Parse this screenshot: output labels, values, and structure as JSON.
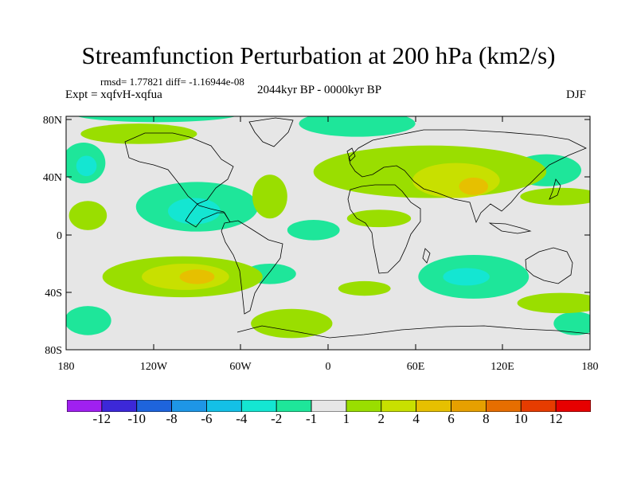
{
  "title": "Streamfunction Perturbation at 200 hPa (km2/s)",
  "stats": "rmsd= 1.77821 diff= -1.16944e-08",
  "experiment": "Expt = xqfvH-xqfua",
  "period": "2044kyr BP - 0000kyr BP",
  "season": "DJF",
  "y_ticks": [
    "80N",
    "40N",
    "0",
    "40S",
    "80S"
  ],
  "x_ticks": [
    "180",
    "120W",
    "60W",
    "0",
    "60E",
    "120E",
    "180"
  ],
  "colorbar": {
    "labels": [
      "-12",
      "-10",
      "-8",
      "-6",
      "-4",
      "-2",
      "-1",
      "1",
      "2",
      "4",
      "6",
      "8",
      "10",
      "12"
    ],
    "colors": [
      "#a020f0",
      "#3c28d8",
      "#1e64dc",
      "#1e96e6",
      "#14c0e6",
      "#14e6d2",
      "#1ee69a",
      "#e6e6e6",
      "#9ade00",
      "#c8e000",
      "#e6c000",
      "#e6a000",
      "#e66e00",
      "#e63c00",
      "#e60000"
    ]
  },
  "field_regions": [
    {
      "name": "arctic-negative",
      "level": -2,
      "lon": -118,
      "lat": 82,
      "rx": 58,
      "ry": 6
    },
    {
      "name": "n-atlantic-negative",
      "level": -2,
      "lon": 20,
      "lat": 75,
      "rx": 40,
      "ry": 9
    },
    {
      "name": "n-pacific-negative",
      "level": -2,
      "lon": -168,
      "lat": 48,
      "rx": 15,
      "ry": 14
    },
    {
      "name": "n-pacific-core",
      "level": -4,
      "lon": -166,
      "lat": 46,
      "rx": 7,
      "ry": 7
    },
    {
      "name": "trop-pacific-negative",
      "level": -2,
      "lon": -90,
      "lat": 18,
      "rx": 42,
      "ry": 17
    },
    {
      "name": "trop-pacific-core",
      "level": -4,
      "lon": -92,
      "lat": 15,
      "rx": 18,
      "ry": 9
    },
    {
      "name": "atlantic-negative",
      "level": -2,
      "lon": -10,
      "lat": 2,
      "rx": 18,
      "ry": 7
    },
    {
      "name": "s-atlantic-negative",
      "level": -2,
      "lon": -40,
      "lat": -28,
      "rx": 18,
      "ry": 7
    },
    {
      "name": "indian-negative",
      "level": -2,
      "lon": 100,
      "lat": -30,
      "rx": 38,
      "ry": 15
    },
    {
      "name": "indian-core",
      "level": -4,
      "lon": 95,
      "lat": -30,
      "rx": 16,
      "ry": 6
    },
    {
      "name": "w-pacific-negative",
      "level": -2,
      "lon": 150,
      "lat": 43,
      "rx": 24,
      "ry": 11
    },
    {
      "name": "s-pacific-negative",
      "level": -2,
      "lon": -165,
      "lat": -60,
      "rx": 16,
      "ry": 10
    },
    {
      "name": "s-pacific-east-negative",
      "level": -2,
      "lon": 170,
      "lat": -62,
      "rx": 15,
      "ry": 8
    },
    {
      "name": "asia-positive",
      "level": 2,
      "lon": 70,
      "lat": 42,
      "rx": 80,
      "ry": 18
    },
    {
      "name": "asia-positive-4",
      "level": 4,
      "lon": 88,
      "lat": 36,
      "rx": 30,
      "ry": 12
    },
    {
      "name": "asia-positive-6",
      "level": 6,
      "lon": 100,
      "lat": 32,
      "rx": 10,
      "ry": 6
    },
    {
      "name": "n-pacific-positive",
      "level": 2,
      "lon": -130,
      "lat": 68,
      "rx": 40,
      "ry": 7
    },
    {
      "name": "w-pacific-positive",
      "level": 2,
      "lon": 160,
      "lat": 25,
      "rx": 28,
      "ry": 6
    },
    {
      "name": "n-africa-positive",
      "level": 2,
      "lon": 35,
      "lat": 10,
      "rx": 22,
      "ry": 6
    },
    {
      "name": "atlantic-positive",
      "level": 2,
      "lon": -40,
      "lat": 25,
      "rx": 12,
      "ry": 15
    },
    {
      "name": "pacific-positive-west",
      "level": 2,
      "lon": -165,
      "lat": 12,
      "rx": 13,
      "ry": 10
    },
    {
      "name": "s-pacific-positive",
      "level": 2,
      "lon": -100,
      "lat": -30,
      "rx": 55,
      "ry": 14
    },
    {
      "name": "s-pacific-positive-4",
      "level": 4,
      "lon": -98,
      "lat": -30,
      "rx": 30,
      "ry": 9
    },
    {
      "name": "s-pacific-positive-6",
      "level": 6,
      "lon": -90,
      "lat": -30,
      "rx": 12,
      "ry": 5
    },
    {
      "name": "s-atlantic-positive",
      "level": 2,
      "lon": -25,
      "lat": -62,
      "rx": 28,
      "ry": 10
    },
    {
      "name": "s-africa-positive",
      "level": 2,
      "lon": 25,
      "lat": -38,
      "rx": 18,
      "ry": 5
    },
    {
      "name": "s-indian-positive",
      "level": 2,
      "lon": 160,
      "lat": -48,
      "rx": 30,
      "ry": 7
    }
  ]
}
